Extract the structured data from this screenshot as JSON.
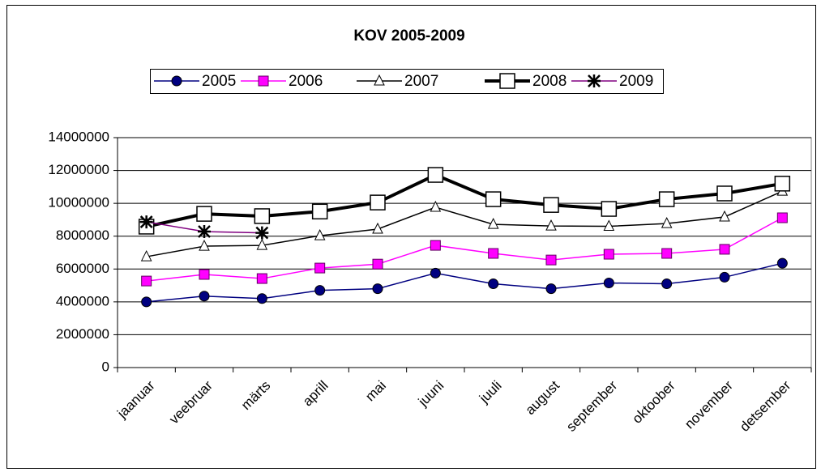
{
  "chart_data": {
    "type": "line",
    "title": "KOV   2005-2009",
    "categories": [
      "jaanuar",
      "veebruar",
      "märts",
      "aprill",
      "mai",
      "juuni",
      "juuli",
      "august",
      "september",
      "oktoober",
      "november",
      "detsember"
    ],
    "series": [
      {
        "name": "2005",
        "color": "#000080",
        "marker": "circle",
        "line_width": 1.5,
        "values": [
          4000000,
          4350000,
          4200000,
          4700000,
          4800000,
          5750000,
          5100000,
          4800000,
          5150000,
          5100000,
          5500000,
          6350000
        ]
      },
      {
        "name": "2006",
        "color": "#ff00ff",
        "marker": "square",
        "line_width": 1.5,
        "values": [
          5270000,
          5670000,
          5420000,
          6060000,
          6300000,
          7440000,
          6950000,
          6550000,
          6900000,
          6950000,
          7200000,
          9120000
        ]
      },
      {
        "name": "2007",
        "color": "#000000",
        "marker": "triangle",
        "line_width": 1.5,
        "values": [
          6750000,
          7390000,
          7440000,
          8030000,
          8430000,
          9760000,
          8720000,
          8620000,
          8600000,
          8770000,
          9170000,
          10740000
        ]
      },
      {
        "name": "2008",
        "color": "#000000",
        "marker": "open-square",
        "line_width": 4,
        "values": [
          8580000,
          9360000,
          9220000,
          9500000,
          10050000,
          11730000,
          10250000,
          9900000,
          9660000,
          10250000,
          10600000,
          11200000
        ]
      },
      {
        "name": "2009",
        "color": "#800080",
        "marker": "star",
        "line_width": 1.5,
        "values": [
          8870000,
          8280000,
          8200000,
          null,
          null,
          null,
          null,
          null,
          null,
          null,
          null,
          null
        ]
      }
    ],
    "ylim": [
      0,
      14000000
    ],
    "yticks": [
      0,
      2000000,
      4000000,
      6000000,
      8000000,
      10000000,
      12000000,
      14000000
    ],
    "grid": true
  }
}
